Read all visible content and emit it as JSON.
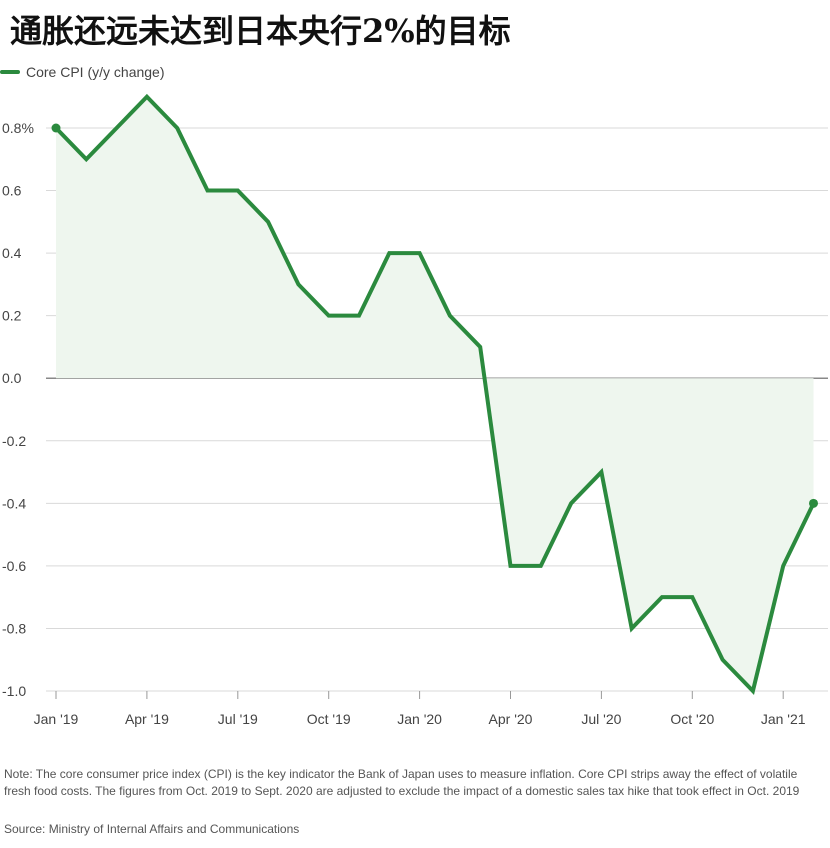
{
  "title": "通胀还远未达到日本央行2%的目标",
  "legend": {
    "label": "Core CPI (y/y change)"
  },
  "note": "Note: The core consumer price index (CPI) is the key indicator the Bank of Japan uses to measure inflation. Core CPI strips away the effect of volatile fresh food costs. The figures from Oct. 2019 to Sept. 2020 are adjusted to exclude the impact of a domestic sales tax hike that took effect in Oct. 2019",
  "source": "Source: Ministry of Internal Affairs and Communications",
  "colors": {
    "line": "#2b8a3e",
    "area": "#eef6ee",
    "grid": "#d9d9d9",
    "zero": "#888888"
  },
  "chart_data": {
    "type": "line",
    "title": "通胀还远未达到日本央行2%的目标",
    "xlabel": "",
    "ylabel": "",
    "ylim": [
      -1.0,
      0.8
    ],
    "yticks": [
      0.8,
      0.6,
      0.4,
      0.2,
      0.0,
      -0.2,
      -0.4,
      -0.6,
      -0.8,
      -1.0
    ],
    "ytick_labels": [
      "0.8%",
      "0.6",
      "0.4",
      "0.2",
      "0.0",
      "-0.2",
      "-0.4",
      "-0.6",
      "-0.8",
      "-1.0"
    ],
    "x_tick_labels": [
      {
        "index": 0,
        "label": "Jan '19"
      },
      {
        "index": 3,
        "label": "Apr '19"
      },
      {
        "index": 6,
        "label": "Jul '19"
      },
      {
        "index": 9,
        "label": "Oct '19"
      },
      {
        "index": 12,
        "label": "Jan '20"
      },
      {
        "index": 15,
        "label": "Apr '20"
      },
      {
        "index": 18,
        "label": "Jul '20"
      },
      {
        "index": 21,
        "label": "Oct '20"
      },
      {
        "index": 24,
        "label": "Jan '21"
      }
    ],
    "x": [
      "2019-01",
      "2019-02",
      "2019-03",
      "2019-04",
      "2019-05",
      "2019-06",
      "2019-07",
      "2019-08",
      "2019-09",
      "2019-10",
      "2019-11",
      "2019-12",
      "2020-01",
      "2020-02",
      "2020-03",
      "2020-04",
      "2020-05",
      "2020-06",
      "2020-07",
      "2020-08",
      "2020-09",
      "2020-10",
      "2020-11",
      "2020-12",
      "2021-01",
      "2021-02"
    ],
    "series": [
      {
        "name": "Core CPI (y/y change)",
        "values": [
          0.8,
          0.7,
          0.8,
          0.9,
          0.8,
          0.6,
          0.6,
          0.5,
          0.3,
          0.2,
          0.2,
          0.4,
          0.4,
          0.2,
          0.1,
          -0.6,
          -0.6,
          -0.4,
          -0.3,
          -0.8,
          -0.7,
          -0.7,
          -0.9,
          -1.0,
          -0.6,
          -0.4
        ]
      }
    ],
    "area_fill": true,
    "grid": true,
    "legend_position": "top-left"
  }
}
